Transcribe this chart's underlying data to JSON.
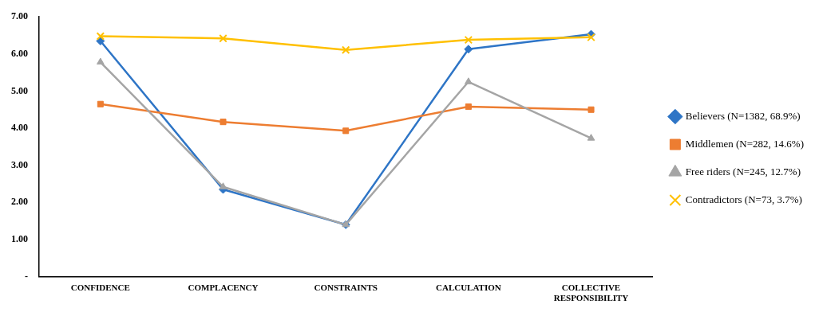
{
  "chart_data": {
    "type": "line",
    "categories": [
      "CONFIDENCE",
      "COMPLACENCY",
      "CONSTRAINTS",
      "CALCULATION",
      "COLLECTIVE RESPONSIBILITY"
    ],
    "series": [
      {
        "name": "Believers (N=1382, 68.9%)",
        "color": "#2e75c6",
        "marker": "diamond",
        "values": [
          6.35,
          2.35,
          1.4,
          6.13,
          6.53
        ]
      },
      {
        "name": "Middlemen (N=282, 14.6%)",
        "color": "#ed7d31",
        "marker": "square",
        "values": [
          4.65,
          4.17,
          3.93,
          4.58,
          4.5
        ]
      },
      {
        "name": "Free riders (N=245, 12.7%)",
        "color": "#a5a5a5",
        "marker": "triangle",
        "values": [
          5.78,
          2.42,
          1.4,
          5.25,
          3.73
        ]
      },
      {
        "name": "Contradictors (N=73, 3.7%)",
        "color": "#ffc000",
        "marker": "cross",
        "values": [
          6.48,
          6.42,
          6.11,
          6.38,
          6.45
        ]
      }
    ],
    "ylim": [
      0,
      7
    ],
    "yticks": [
      {
        "value": 0,
        "label": "-"
      },
      {
        "value": 1,
        "label": "1.00"
      },
      {
        "value": 2,
        "label": "2.00"
      },
      {
        "value": 3,
        "label": "3.00"
      },
      {
        "value": 4,
        "label": "4.00"
      },
      {
        "value": 5,
        "label": "5.00"
      },
      {
        "value": 6,
        "label": "6.00"
      },
      {
        "value": 7,
        "label": "7.00"
      }
    ],
    "grid": false,
    "legend": "right",
    "line_style": "solid"
  }
}
